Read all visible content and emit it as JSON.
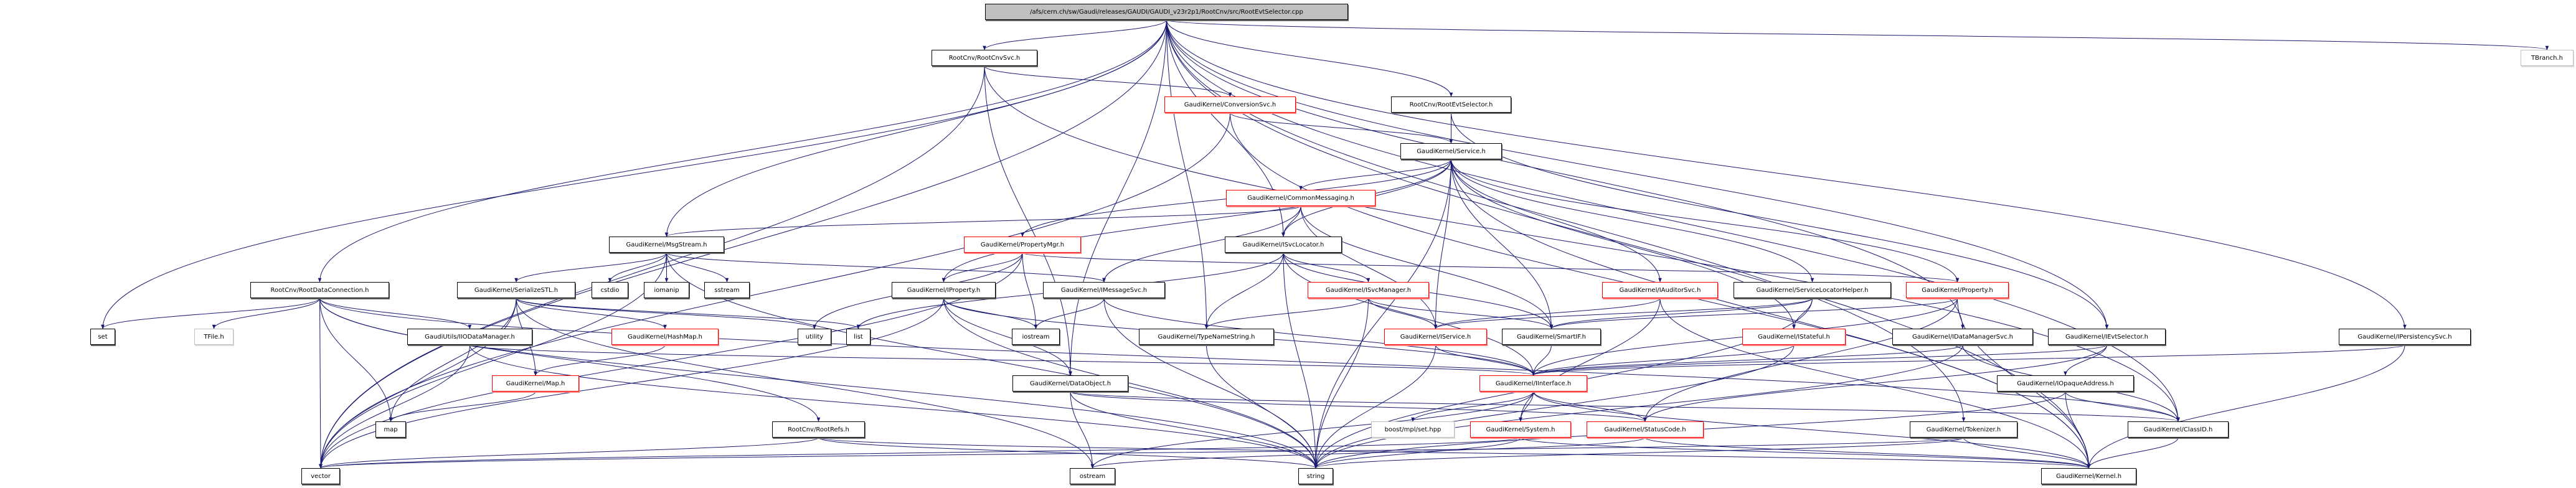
{
  "colors": {
    "edge": "#191970",
    "red_border": "#ff0000",
    "gray_border": "#bfbfbf",
    "root_fill": "#bfbfbf"
  },
  "nodes": [
    {
      "id": "root",
      "label": "/afs/cern.ch/sw/Gaudi/releases/GAUDI/GAUDI_v23r2p1/RootCnv/src/RootEvtSelector.cpp",
      "style": "root"
    },
    {
      "id": "rootcnvsvc",
      "label": "RootCnv/RootCnvSvc.h",
      "style": "black"
    },
    {
      "id": "tbranch",
      "label": "TBranch.h",
      "style": "gray"
    },
    {
      "id": "conversionsvc",
      "label": "GaudiKernel/ConversionSvc.h",
      "style": "red"
    },
    {
      "id": "rootevtselh",
      "label": "RootCnv/RootEvtSelector.h",
      "style": "black"
    },
    {
      "id": "service",
      "label": "GaudiKernel/Service.h",
      "style": "black"
    },
    {
      "id": "commonmsg",
      "label": "GaudiKernel/CommonMessaging.h",
      "style": "red"
    },
    {
      "id": "msgstream",
      "label": "GaudiKernel/MsgStream.h",
      "style": "black"
    },
    {
      "id": "propertymgr",
      "label": "GaudiKernel/PropertyMgr.h",
      "style": "red"
    },
    {
      "id": "isvclocator",
      "label": "GaudiKernel/ISvcLocator.h",
      "style": "black"
    },
    {
      "id": "rootdataconn",
      "label": "RootCnv/RootDataConnection.h",
      "style": "black"
    },
    {
      "id": "serializestl",
      "label": "GaudiKernel/SerializeSTL.h",
      "style": "black"
    },
    {
      "id": "cstdio",
      "label": "cstdio",
      "style": "black"
    },
    {
      "id": "iomanip",
      "label": "iomanip",
      "style": "black"
    },
    {
      "id": "sstream",
      "label": "sstream",
      "style": "black"
    },
    {
      "id": "iproperty",
      "label": "GaudiKernel/IProperty.h",
      "style": "black"
    },
    {
      "id": "imessagesvc",
      "label": "GaudiKernel/IMessageSvc.h",
      "style": "black"
    },
    {
      "id": "isvcmanager",
      "label": "GaudiKernel/ISvcManager.h",
      "style": "red"
    },
    {
      "id": "iauditorsvc",
      "label": "GaudiKernel/IAuditorSvc.h",
      "style": "red"
    },
    {
      "id": "svclochelper",
      "label": "GaudiKernel/ServiceLocatorHelper.h",
      "style": "black"
    },
    {
      "id": "property",
      "label": "GaudiKernel/Property.h",
      "style": "red"
    },
    {
      "id": "idatamgrsvc",
      "label": "GaudiKernel/IDataManagerSvc.h",
      "style": "black"
    },
    {
      "id": "ievtselector",
      "label": "GaudiKernel/IEvtSelector.h",
      "style": "black"
    },
    {
      "id": "ipersistencysvc",
      "label": "GaudiKernel/IPersistencySvc.h",
      "style": "black"
    },
    {
      "id": "set",
      "label": "set",
      "style": "black"
    },
    {
      "id": "tfile",
      "label": "TFile.h",
      "style": "gray"
    },
    {
      "id": "iiodatamgr",
      "label": "GaudiUtils/IIODataManager.h",
      "style": "black"
    },
    {
      "id": "hashmap",
      "label": "GaudiKernel/HashMap.h",
      "style": "red"
    },
    {
      "id": "utility",
      "label": "utility",
      "style": "black"
    },
    {
      "id": "list",
      "label": "list",
      "style": "black"
    },
    {
      "id": "iostream",
      "label": "iostream",
      "style": "black"
    },
    {
      "id": "typenamestring",
      "label": "GaudiKernel/TypeNameString.h",
      "style": "black"
    },
    {
      "id": "iservice",
      "label": "GaudiKernel/IService.h",
      "style": "red"
    },
    {
      "id": "smartif",
      "label": "GaudiKernel/SmartIF.h",
      "style": "black"
    },
    {
      "id": "istateful",
      "label": "GaudiKernel/IStateful.h",
      "style": "red"
    },
    {
      "id": "mapgk",
      "label": "GaudiKernel/Map.h",
      "style": "red"
    },
    {
      "id": "dataobject",
      "label": "GaudiKernel/DataObject.h",
      "style": "black"
    },
    {
      "id": "iinterface",
      "label": "GaudiKernel/IInterface.h",
      "style": "red"
    },
    {
      "id": "iopaqueaddr",
      "label": "GaudiKernel/IOpaqueAddress.h",
      "style": "black"
    },
    {
      "id": "map",
      "label": "map",
      "style": "black"
    },
    {
      "id": "rootrefs",
      "label": "RootCnv/RootRefs.h",
      "style": "black"
    },
    {
      "id": "boostset",
      "label": "boost/mpl/set.hpp",
      "style": "gray"
    },
    {
      "id": "system",
      "label": "GaudiKernel/System.h",
      "style": "red"
    },
    {
      "id": "statuscode",
      "label": "GaudiKernel/StatusCode.h",
      "style": "red"
    },
    {
      "id": "tokenizer",
      "label": "GaudiKernel/Tokenizer.h",
      "style": "black"
    },
    {
      "id": "classid",
      "label": "GaudiKernel/ClassID.h",
      "style": "black"
    },
    {
      "id": "vector",
      "label": "vector",
      "style": "black"
    },
    {
      "id": "ostream",
      "label": "ostream",
      "style": "black"
    },
    {
      "id": "string",
      "label": "string",
      "style": "black"
    },
    {
      "id": "kernel",
      "label": "GaudiKernel/Kernel.h",
      "style": "black"
    }
  ],
  "edges": [
    [
      "root",
      "rootcnvsvc"
    ],
    [
      "root",
      "rootevtselh"
    ],
    [
      "root",
      "rootdataconn"
    ],
    [
      "root",
      "msgstream"
    ],
    [
      "root",
      "isvclocator"
    ],
    [
      "root",
      "idatamgrsvc"
    ],
    [
      "root",
      "ipersistencysvc"
    ],
    [
      "root",
      "classid"
    ],
    [
      "root",
      "tbranch"
    ],
    [
      "root",
      "vector"
    ],
    [
      "root",
      "set"
    ],
    [
      "root",
      "typenamestring"
    ],
    [
      "root",
      "dataobject"
    ],
    [
      "root",
      "ievtselector"
    ],
    [
      "root",
      "kernel"
    ],
    [
      "rootcnvsvc",
      "conversionsvc"
    ],
    [
      "rootcnvsvc",
      "dataobject"
    ],
    [
      "rootcnvsvc",
      "vector"
    ],
    [
      "rootcnvsvc",
      "classid"
    ],
    [
      "conversionsvc",
      "service"
    ],
    [
      "conversionsvc",
      "vector"
    ],
    [
      "conversionsvc",
      "kernel"
    ],
    [
      "rootevtselh",
      "service"
    ],
    [
      "rootevtselh",
      "ievtselector"
    ],
    [
      "service",
      "commonmsg"
    ],
    [
      "service",
      "isvclocator"
    ],
    [
      "service",
      "propertymgr"
    ],
    [
      "service",
      "iproperty"
    ],
    [
      "service",
      "iservice"
    ],
    [
      "service",
      "smartif"
    ],
    [
      "service",
      "iauditorsvc"
    ],
    [
      "service",
      "svclochelper"
    ],
    [
      "service",
      "property"
    ],
    [
      "service",
      "istateful"
    ],
    [
      "service",
      "string"
    ],
    [
      "service",
      "kernel"
    ],
    [
      "commonmsg",
      "msgstream"
    ],
    [
      "commonmsg",
      "isvclocator"
    ],
    [
      "commonmsg",
      "imessagesvc"
    ],
    [
      "commonmsg",
      "iservice"
    ],
    [
      "commonmsg",
      "smartif"
    ],
    [
      "propertymgr",
      "iproperty"
    ],
    [
      "propertymgr",
      "property"
    ],
    [
      "propertymgr",
      "iostream"
    ],
    [
      "propertymgr",
      "vector"
    ],
    [
      "propertymgr",
      "utility"
    ],
    [
      "isvclocator",
      "isvcmanager"
    ],
    [
      "isvclocator",
      "typenamestring"
    ],
    [
      "isvclocator",
      "iinterface"
    ],
    [
      "isvclocator",
      "smartif"
    ],
    [
      "isvclocator",
      "string"
    ],
    [
      "isvclocator",
      "list"
    ],
    [
      "msgstream",
      "serializestl"
    ],
    [
      "msgstream",
      "cstdio"
    ],
    [
      "msgstream",
      "iomanip"
    ],
    [
      "msgstream",
      "sstream"
    ],
    [
      "msgstream",
      "imessagesvc"
    ],
    [
      "msgstream",
      "string"
    ],
    [
      "msgstream",
      "vector"
    ],
    [
      "iproperty",
      "iostream"
    ],
    [
      "iproperty",
      "iinterface"
    ],
    [
      "iproperty",
      "string"
    ],
    [
      "iproperty",
      "vector"
    ],
    [
      "iproperty",
      "dataobject"
    ],
    [
      "imessagesvc",
      "iostream"
    ],
    [
      "imessagesvc",
      "iinterface"
    ],
    [
      "imessagesvc",
      "string"
    ],
    [
      "isvcmanager",
      "typenamestring"
    ],
    [
      "isvcmanager",
      "iservice"
    ],
    [
      "isvcmanager",
      "smartif"
    ],
    [
      "isvcmanager",
      "string"
    ],
    [
      "iauditorsvc",
      "iservice"
    ],
    [
      "iauditorsvc",
      "system"
    ],
    [
      "iauditorsvc",
      "kernel"
    ],
    [
      "svclochelper",
      "iservice"
    ],
    [
      "svclochelper",
      "smartif"
    ],
    [
      "svclochelper",
      "istateful"
    ],
    [
      "svclochelper",
      "string"
    ],
    [
      "property",
      "smartif"
    ],
    [
      "property",
      "iinterface"
    ],
    [
      "property",
      "kernel"
    ],
    [
      "property",
      "statuscode"
    ],
    [
      "istateful",
      "iinterface"
    ],
    [
      "istateful",
      "string"
    ],
    [
      "idatamgrsvc",
      "iinterface"
    ],
    [
      "idatamgrsvc",
      "classid"
    ],
    [
      "idatamgrsvc",
      "string"
    ],
    [
      "ievtselector",
      "iinterface"
    ],
    [
      "ievtselector",
      "iopaqueaddr"
    ],
    [
      "ievtselector",
      "statuscode"
    ],
    [
      "ipersistencysvc",
      "iinterface"
    ],
    [
      "ipersistencysvc",
      "kernel"
    ],
    [
      "typenamestring",
      "string"
    ],
    [
      "iservice",
      "string"
    ],
    [
      "iservice",
      "iinterface"
    ],
    [
      "smartif",
      "iinterface"
    ],
    [
      "iinterface",
      "boostset"
    ],
    [
      "iinterface",
      "system"
    ],
    [
      "iinterface",
      "statuscode"
    ],
    [
      "iinterface",
      "ostream"
    ],
    [
      "iinterface",
      "kernel"
    ],
    [
      "dataobject",
      "ostream"
    ],
    [
      "dataobject",
      "string"
    ],
    [
      "dataobject",
      "classid"
    ],
    [
      "dataobject",
      "statuscode"
    ],
    [
      "iopaqueaddr",
      "kernel"
    ],
    [
      "iopaqueaddr",
      "classid"
    ],
    [
      "iopaqueaddr",
      "string"
    ],
    [
      "tokenizer",
      "kernel"
    ],
    [
      "tokenizer",
      "string"
    ],
    [
      "tokenizer",
      "vector"
    ],
    [
      "classid",
      "kernel"
    ],
    [
      "system",
      "string"
    ],
    [
      "system",
      "vector"
    ],
    [
      "system",
      "kernel"
    ],
    [
      "statuscode",
      "kernel"
    ],
    [
      "statuscode",
      "ostream"
    ],
    [
      "rootdataconn",
      "set"
    ],
    [
      "rootdataconn",
      "tfile"
    ],
    [
      "rootdataconn",
      "iiodatamgr"
    ],
    [
      "rootdataconn",
      "map"
    ],
    [
      "rootdataconn",
      "vector"
    ],
    [
      "rootdataconn",
      "rootrefs"
    ],
    [
      "rootdataconn",
      "string"
    ],
    [
      "rootdataconn",
      "classid"
    ],
    [
      "serializestl",
      "hashmap"
    ],
    [
      "serializestl",
      "mapgk"
    ],
    [
      "serializestl",
      "map"
    ],
    [
      "serializestl",
      "vector"
    ],
    [
      "serializestl",
      "utility"
    ],
    [
      "serializestl",
      "list"
    ],
    [
      "serializestl",
      "ostream"
    ],
    [
      "hashmap",
      "mapgk"
    ],
    [
      "mapgk",
      "map"
    ],
    [
      "iiodatamgr",
      "iinterface"
    ],
    [
      "iiodatamgr",
      "vector"
    ],
    [
      "iiodatamgr",
      "string"
    ],
    [
      "rootrefs",
      "vector"
    ],
    [
      "rootrefs",
      "string"
    ],
    [
      "rootrefs",
      "kernel"
    ],
    [
      "root",
      "tokenizer"
    ]
  ]
}
